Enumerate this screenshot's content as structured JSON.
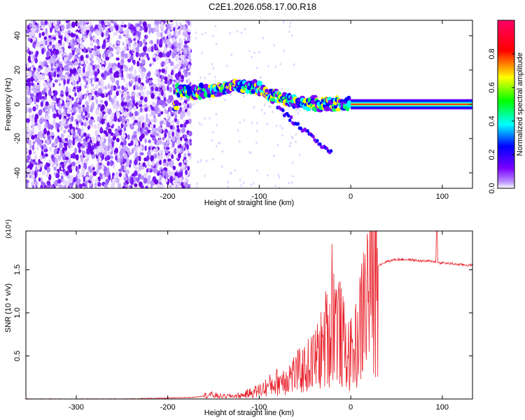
{
  "title": "C2E1.2026.058.17.00.R18",
  "chart_data": [
    {
      "type": "heatmap",
      "xlabel": "Height of straight line (km)",
      "ylabel": "Frequency (Hz)",
      "xlim": [
        -355,
        133
      ],
      "ylim": [
        -49,
        49
      ],
      "xticks": [
        -300,
        -200,
        -100,
        0,
        100
      ],
      "yticks": [
        -40,
        -20,
        0,
        20,
        40
      ],
      "grid": false,
      "colorbar": {
        "label": "Normalized spectral amplitude",
        "range": [
          0,
          1
        ],
        "ticks": [
          0.0,
          0.2,
          0.4,
          0.6,
          0.8
        ],
        "stops": [
          "#ffffff",
          "#7a00ff",
          "#0000ff",
          "#00ffff",
          "#00ff00",
          "#ffff00",
          "#ff0000",
          "#ff0066"
        ]
      },
      "ridge": {
        "x": [
          -190,
          -170,
          -150,
          -130,
          -115,
          -100,
          -85,
          -70,
          -55,
          -40,
          -25,
          -10,
          0,
          50,
          130
        ],
        "y": [
          8,
          7,
          8,
          10,
          11,
          9,
          5,
          3,
          1,
          0,
          0,
          0,
          0,
          0,
          0
        ]
      }
    },
    {
      "type": "line",
      "xlabel": "Height of straight line (km)",
      "ylabel": "SNR (10 * v/v)",
      "ymultiplier": "(x10⁴)",
      "xlim": [
        -355,
        133
      ],
      "ylim": [
        0,
        1.95
      ],
      "xticks": [
        -300,
        -200,
        -100,
        0,
        100
      ],
      "yticks": [
        0.5,
        1.0,
        1.5
      ],
      "grid": false,
      "series": [
        {
          "color": "#e8202a",
          "x": [
            -355,
            -300,
            -250,
            -200,
            -170,
            -155,
            -140,
            -120,
            -100,
            -90,
            -80,
            -70,
            -60,
            -50,
            -40,
            -30,
            -25,
            -20,
            -15,
            -10,
            -5,
            0,
            5,
            10,
            15,
            20,
            25,
            30,
            40,
            50,
            60,
            70,
            80,
            90,
            95,
            100,
            110,
            120,
            133
          ],
          "y": [
            0.0,
            0.0,
            0.0,
            0.01,
            0.02,
            0.05,
            0.03,
            0.04,
            0.1,
            0.15,
            0.2,
            0.25,
            0.3,
            0.35,
            0.45,
            0.6,
            0.8,
            1.0,
            0.9,
            0.7,
            0.55,
            0.5,
            0.6,
            0.8,
            1.1,
            1.3,
            1.45,
            1.55,
            1.6,
            1.62,
            1.62,
            1.61,
            1.6,
            1.6,
            1.58,
            1.58,
            1.57,
            1.56,
            1.55
          ]
        }
      ]
    }
  ]
}
